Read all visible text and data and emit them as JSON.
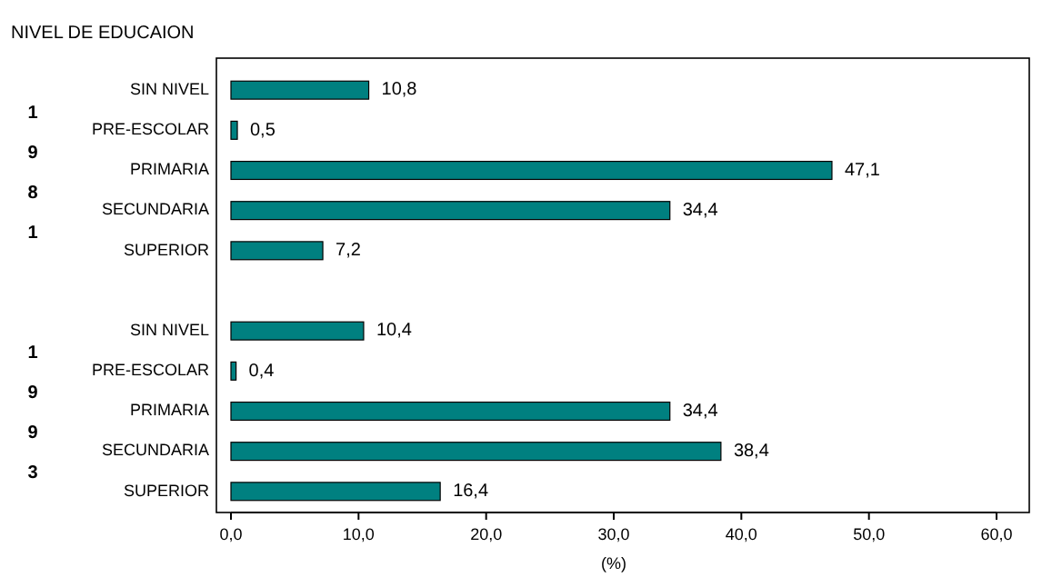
{
  "chart_data": {
    "type": "bar",
    "orientation": "horizontal",
    "title": "NIVEL DE EDUCAION",
    "xlabel": "(%)",
    "categories": [
      "SIN NIVEL",
      "PRE-ESCOLAR",
      "PRIMARIA",
      "SECUNDARIA",
      "SUPERIOR",
      null,
      "SIN NIVEL",
      "PRE-ESCOLAR",
      "PRIMARIA",
      "SECUNDARIA",
      "SUPERIOR"
    ],
    "values": [
      10.8,
      0.5,
      47.1,
      34.4,
      7.2,
      null,
      10.4,
      0.4,
      34.4,
      38.4,
      16.4
    ],
    "value_labels": [
      "10,8",
      "0,5",
      "47,1",
      "34,4",
      "7,2",
      null,
      "10,4",
      "0,4",
      "34,4",
      "38,4",
      "16,4"
    ],
    "color": "#008080",
    "xlim": [
      0,
      60
    ],
    "xticks": [
      {
        "value": 0,
        "label": "0,0"
      },
      {
        "value": 10,
        "label": "10,0"
      },
      {
        "value": 20,
        "label": "20,0"
      },
      {
        "value": 30,
        "label": "30,0"
      },
      {
        "value": 40,
        "label": "40,0"
      },
      {
        "value": 50,
        "label": "50,0"
      },
      {
        "value": 60,
        "label": "60,0"
      }
    ],
    "annotations": [
      "1981",
      "1993"
    ]
  }
}
